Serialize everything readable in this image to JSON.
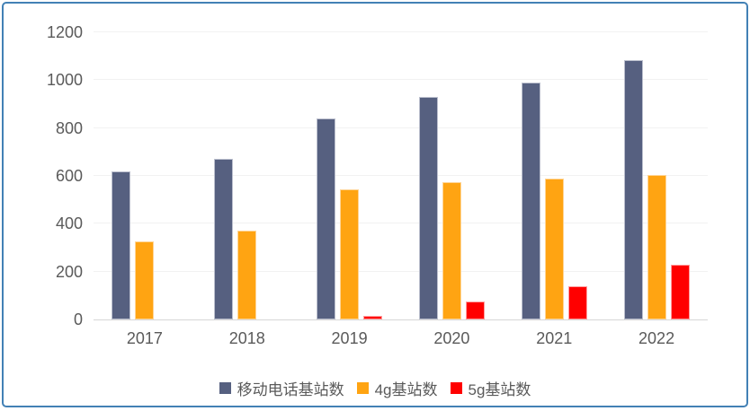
{
  "frame": {
    "border_color": "#4381b5",
    "background": "#ffffff"
  },
  "axis": {
    "tick_color": "#5a5a5a",
    "gridline_color": "#f2f2f2",
    "axis_line_color": "#d6d6d6"
  },
  "chart_data": {
    "type": "bar",
    "title": "",
    "xlabel": "",
    "ylabel": "",
    "categories": [
      "2017",
      "2018",
      "2019",
      "2020",
      "2021",
      "2022"
    ],
    "series": [
      {
        "name": "移动电话基站数",
        "color": "#566080",
        "border": "#bcc0ce",
        "values": [
          620,
          670,
          840,
          930,
          990,
          1085
        ]
      },
      {
        "name": "4g基站数",
        "color": "#ffa412",
        "border": "#ffd596",
        "values": [
          325,
          370,
          545,
          575,
          590,
          605
        ]
      },
      {
        "name": "5g基站数",
        "color": "#ff0000",
        "border": "#ff9e9e",
        "values": [
          0,
          0,
          15,
          75,
          140,
          230
        ]
      }
    ],
    "ylim": [
      0,
      1200
    ],
    "ytick_step": 200,
    "grid": true,
    "legend_position": "bottom"
  }
}
